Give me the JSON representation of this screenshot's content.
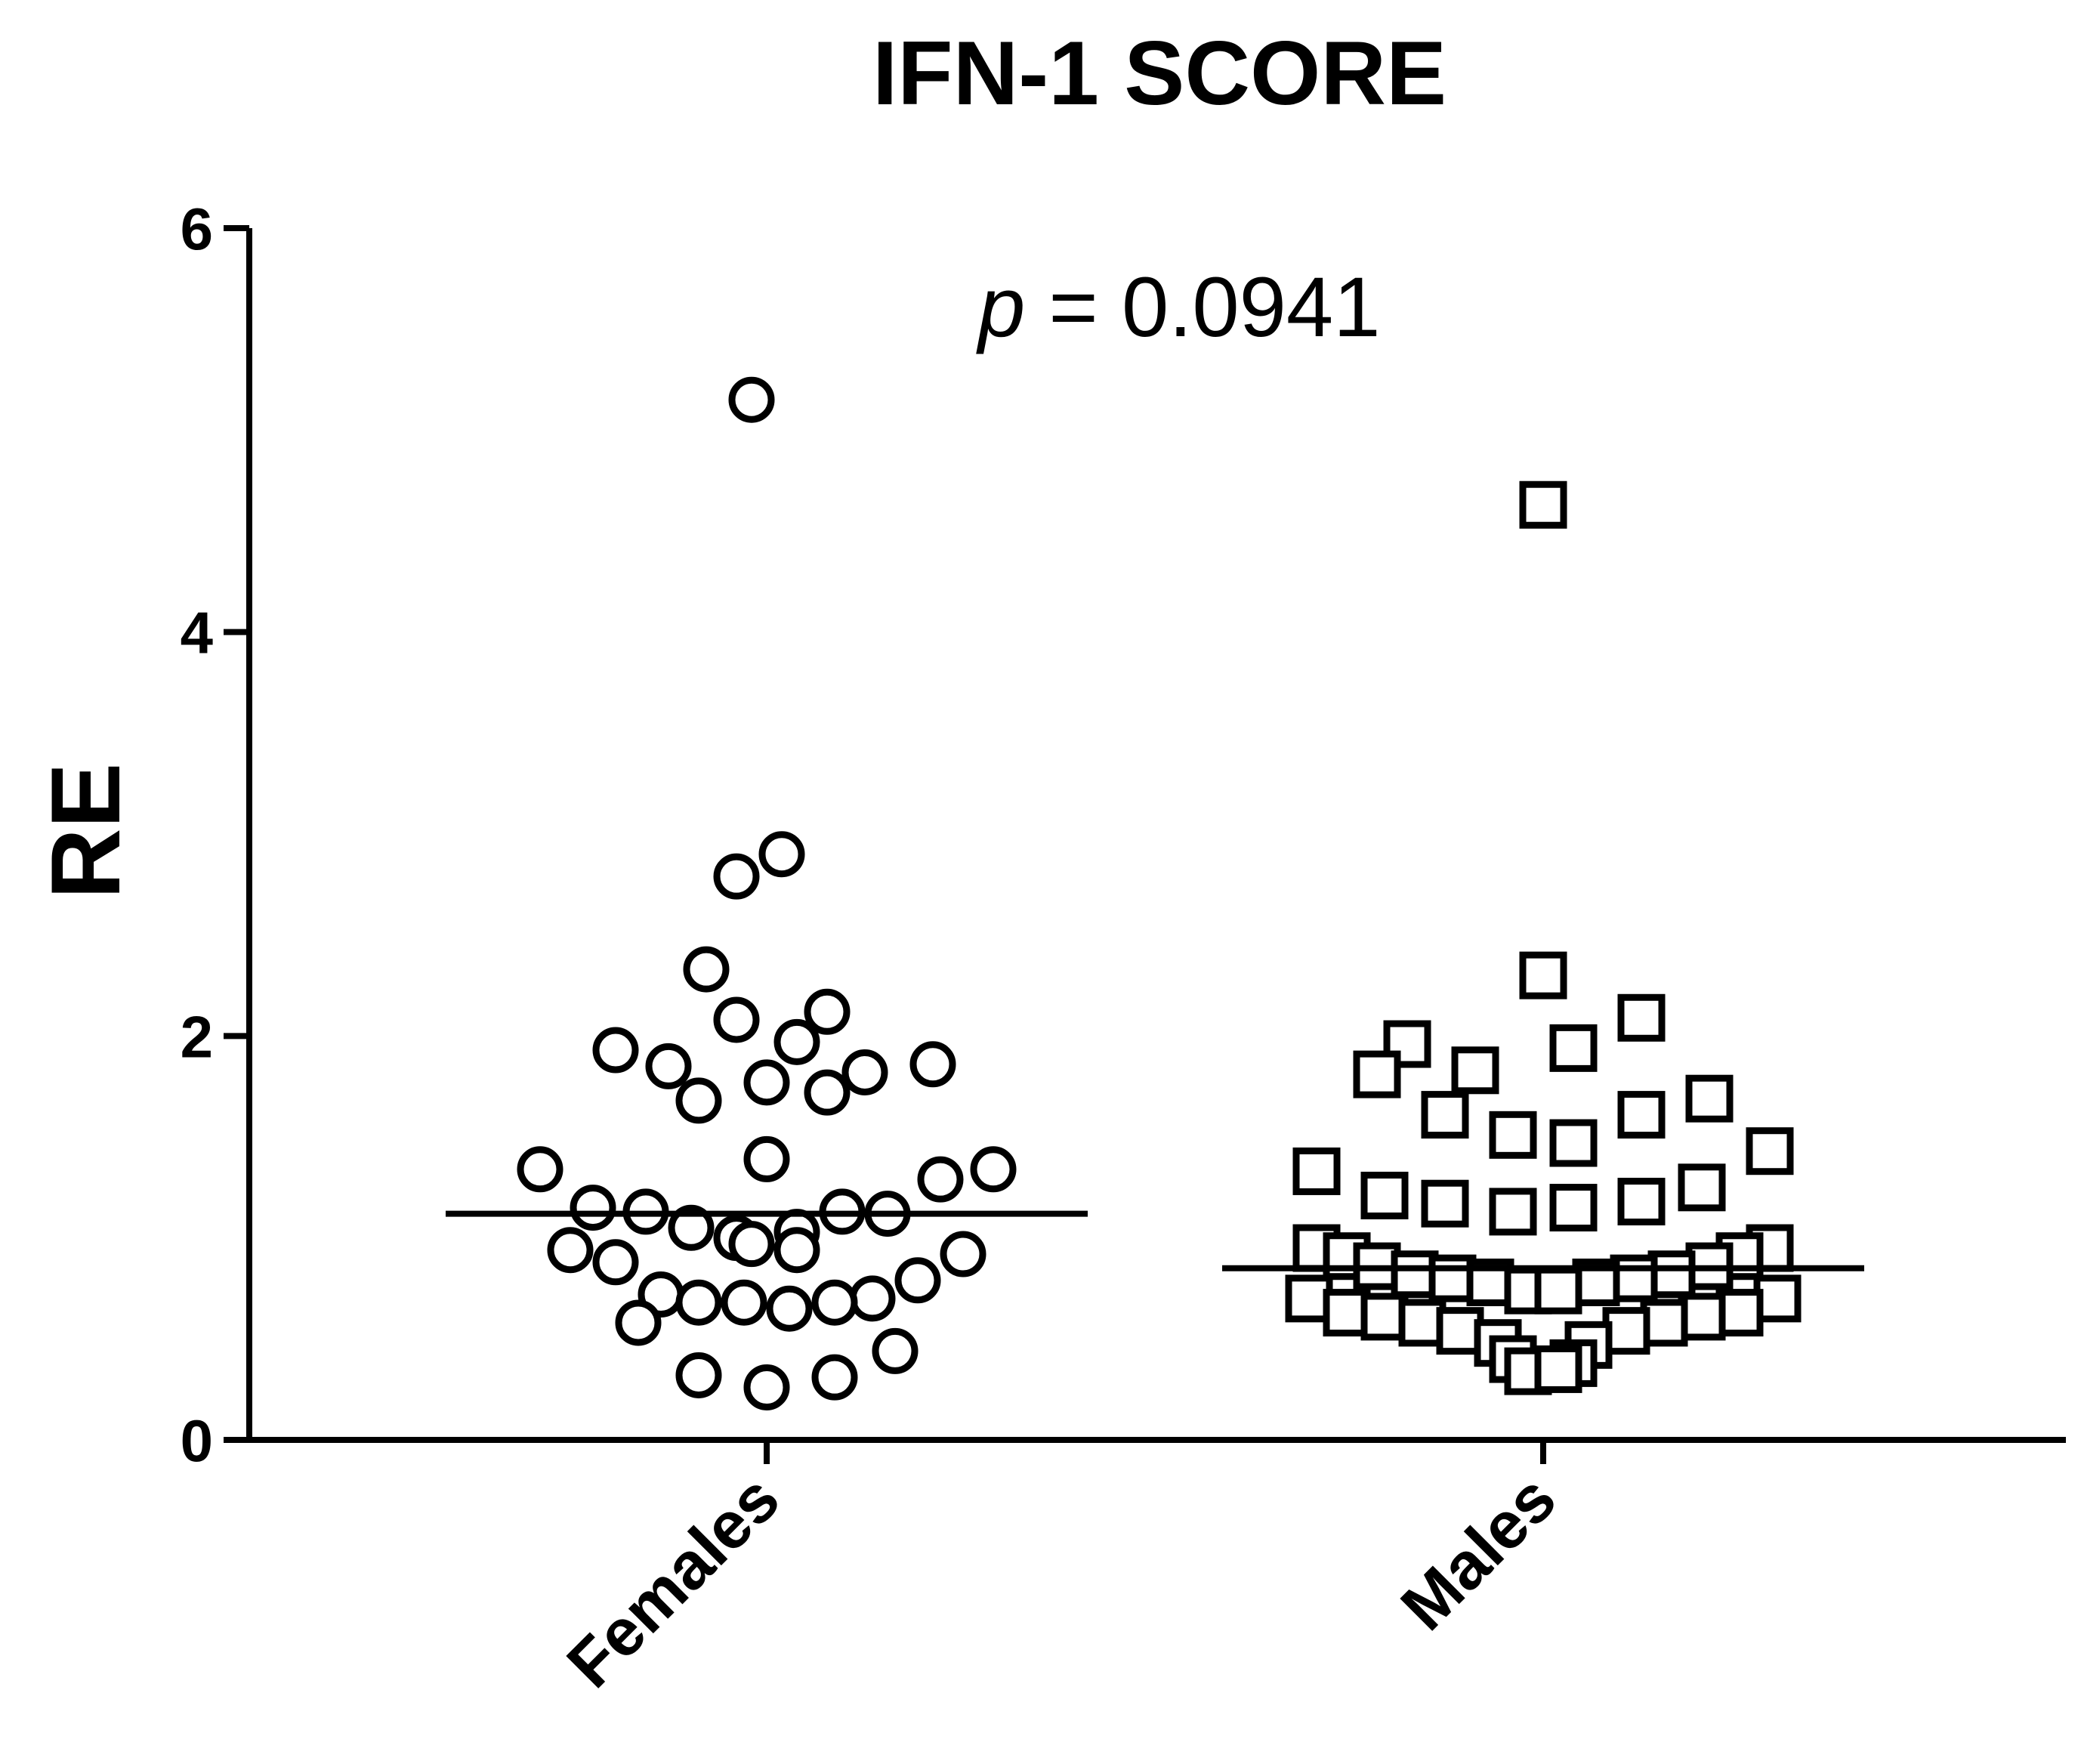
{
  "chart_data": {
    "type": "scatter",
    "title": "IFN-1 SCORE",
    "xlabel": "",
    "ylabel": "RE",
    "ylim": [
      0,
      6
    ],
    "yticks": [
      "0",
      "2",
      "4",
      "6"
    ],
    "categories": [
      "Females",
      "Males"
    ],
    "annotation": {
      "italic": "p",
      "text": " = 0.0941"
    },
    "grid": false,
    "series": [
      {
        "category": "Females",
        "marker": "circle",
        "median": 1.12,
        "points": [
          {
            "offset": -0.02,
            "y": 5.15
          },
          {
            "offset": 0.02,
            "y": 2.9
          },
          {
            "offset": -0.04,
            "y": 2.79
          },
          {
            "offset": -0.08,
            "y": 2.33
          },
          {
            "offset": -0.04,
            "y": 2.08
          },
          {
            "offset": 0.08,
            "y": 2.12
          },
          {
            "offset": 0.04,
            "y": 1.97
          },
          {
            "offset": -0.2,
            "y": 1.93
          },
          {
            "offset": -0.13,
            "y": 1.85
          },
          {
            "offset": 0.22,
            "y": 1.86
          },
          {
            "offset": 0.13,
            "y": 1.82
          },
          {
            "offset": 0.0,
            "y": 1.77
          },
          {
            "offset": 0.08,
            "y": 1.72
          },
          {
            "offset": -0.09,
            "y": 1.68
          },
          {
            "offset": 0.0,
            "y": 1.39
          },
          {
            "offset": -0.3,
            "y": 1.34
          },
          {
            "offset": 0.3,
            "y": 1.34
          },
          {
            "offset": 0.23,
            "y": 1.29
          },
          {
            "offset": -0.23,
            "y": 1.15
          },
          {
            "offset": -0.16,
            "y": 1.13
          },
          {
            "offset": 0.16,
            "y": 1.12
          },
          {
            "offset": 0.1,
            "y": 1.13
          },
          {
            "offset": -0.1,
            "y": 1.05
          },
          {
            "offset": 0.04,
            "y": 1.03
          },
          {
            "offset": -0.04,
            "y": 1.0
          },
          {
            "offset": -0.02,
            "y": 0.97
          },
          {
            "offset": 0.04,
            "y": 0.94
          },
          {
            "offset": -0.26,
            "y": 0.94
          },
          {
            "offset": 0.26,
            "y": 0.92
          },
          {
            "offset": -0.2,
            "y": 0.88
          },
          {
            "offset": 0.2,
            "y": 0.79
          },
          {
            "offset": -0.14,
            "y": 0.72
          },
          {
            "offset": 0.14,
            "y": 0.7
          },
          {
            "offset": -0.09,
            "y": 0.68
          },
          {
            "offset": -0.03,
            "y": 0.68
          },
          {
            "offset": 0.03,
            "y": 0.65
          },
          {
            "offset": 0.09,
            "y": 0.68
          },
          {
            "offset": -0.17,
            "y": 0.58
          },
          {
            "offset": 0.17,
            "y": 0.44
          },
          {
            "offset": -0.09,
            "y": 0.32
          },
          {
            "offset": 0.09,
            "y": 0.31
          },
          {
            "offset": 0.0,
            "y": 0.26
          }
        ]
      },
      {
        "category": "Males",
        "marker": "square",
        "median": 0.85,
        "points": [
          {
            "offset": 0.0,
            "y": 4.63
          },
          {
            "offset": 0.0,
            "y": 2.3
          },
          {
            "offset": 0.13,
            "y": 2.09
          },
          {
            "offset": -0.18,
            "y": 1.96
          },
          {
            "offset": 0.04,
            "y": 1.94
          },
          {
            "offset": -0.22,
            "y": 1.81
          },
          {
            "offset": -0.09,
            "y": 1.83
          },
          {
            "offset": 0.22,
            "y": 1.69
          },
          {
            "offset": -0.13,
            "y": 1.61
          },
          {
            "offset": 0.13,
            "y": 1.61
          },
          {
            "offset": -0.04,
            "y": 1.51
          },
          {
            "offset": 0.04,
            "y": 1.47
          },
          {
            "offset": 0.3,
            "y": 1.43
          },
          {
            "offset": -0.3,
            "y": 1.33
          },
          {
            "offset": 0.21,
            "y": 1.25
          },
          {
            "offset": -0.21,
            "y": 1.21
          },
          {
            "offset": -0.13,
            "y": 1.17
          },
          {
            "offset": 0.13,
            "y": 1.18
          },
          {
            "offset": -0.04,
            "y": 1.13
          },
          {
            "offset": 0.04,
            "y": 1.15
          },
          {
            "offset": -0.3,
            "y": 0.95
          },
          {
            "offset": 0.3,
            "y": 0.95
          },
          {
            "offset": -0.26,
            "y": 0.91
          },
          {
            "offset": 0.26,
            "y": 0.91
          },
          {
            "offset": -0.22,
            "y": 0.86
          },
          {
            "offset": 0.22,
            "y": 0.86
          },
          {
            "offset": -0.17,
            "y": 0.82
          },
          {
            "offset": 0.17,
            "y": 0.82
          },
          {
            "offset": -0.12,
            "y": 0.8
          },
          {
            "offset": 0.12,
            "y": 0.8
          },
          {
            "offset": -0.07,
            "y": 0.78
          },
          {
            "offset": 0.07,
            "y": 0.78
          },
          {
            "offset": -0.02,
            "y": 0.74
          },
          {
            "offset": 0.02,
            "y": 0.74
          },
          {
            "offset": -0.31,
            "y": 0.7
          },
          {
            "offset": 0.31,
            "y": 0.7
          },
          {
            "offset": -0.26,
            "y": 0.63
          },
          {
            "offset": 0.26,
            "y": 0.63
          },
          {
            "offset": -0.21,
            "y": 0.61
          },
          {
            "offset": 0.21,
            "y": 0.61
          },
          {
            "offset": -0.16,
            "y": 0.58
          },
          {
            "offset": 0.16,
            "y": 0.58
          },
          {
            "offset": -0.11,
            "y": 0.54
          },
          {
            "offset": 0.11,
            "y": 0.54
          },
          {
            "offset": -0.06,
            "y": 0.48
          },
          {
            "offset": 0.06,
            "y": 0.47
          },
          {
            "offset": -0.04,
            "y": 0.4
          },
          {
            "offset": 0.04,
            "y": 0.38
          },
          {
            "offset": -0.02,
            "y": 0.34
          },
          {
            "offset": 0.02,
            "y": 0.35
          }
        ]
      }
    ]
  }
}
